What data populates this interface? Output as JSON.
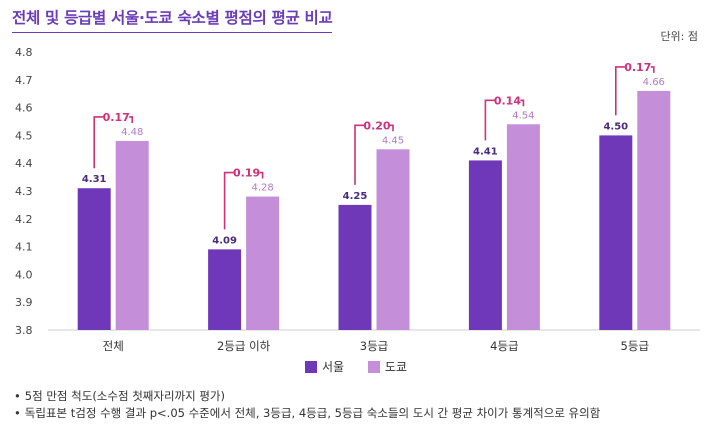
{
  "title": "전체 및 등급별 서울·도쿄 숙소별 평점의 평균 비교",
  "unit": "단위: 점",
  "notes": [
    "5점 만점 척도(소수점 첫째자리까지 평가)",
    "독립표본 t검정 수행 결과 p<.05 수준에서 전체, 3등급, 4등급, 5등급 숙소들의 도시 간 평균 차이가 통계적으로 유의함"
  ],
  "chart_data": {
    "type": "bar",
    "categories": [
      "전체",
      "2등급 이하",
      "3등급",
      "4등급",
      "5등급"
    ],
    "series": [
      {
        "name": "서울",
        "color": "#6f38b8",
        "values": [
          4.31,
          4.09,
          4.25,
          4.41,
          4.5
        ],
        "labels": [
          "4.31",
          "4.09",
          "4.25",
          "4.41",
          "4.50"
        ]
      },
      {
        "name": "도쿄",
        "color": "#c48fd8",
        "values": [
          4.48,
          4.28,
          4.45,
          4.54,
          4.66
        ],
        "labels": [
          "4.48",
          "4.28",
          "4.45",
          "4.54",
          "4.66"
        ]
      }
    ],
    "differences": [
      "0.17",
      "0.19",
      "0.20",
      "0.14",
      "0.17"
    ],
    "ylim": [
      3.8,
      4.8
    ],
    "yticks": [
      "3.8",
      "3.9",
      "4.0",
      "4.1",
      "4.2",
      "4.3",
      "4.4",
      "4.5",
      "4.6",
      "4.7",
      "4.8"
    ],
    "grid": false,
    "legend_position": "bottom-center",
    "bracket_color": "#d0307a"
  }
}
